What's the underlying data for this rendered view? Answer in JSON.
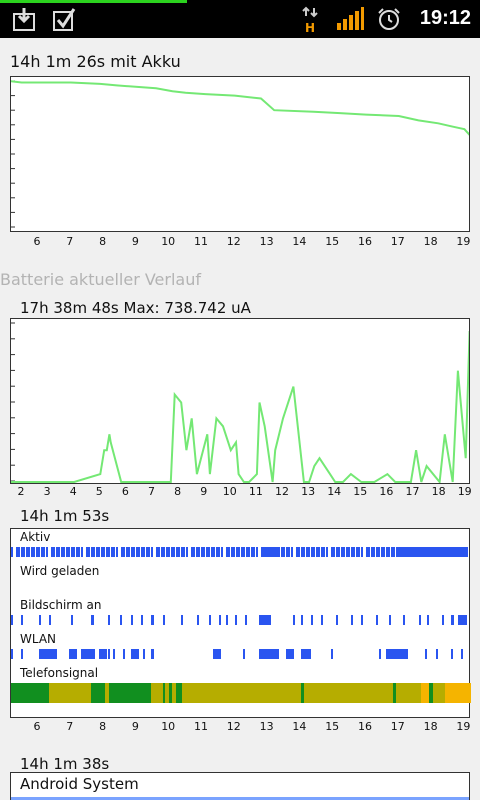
{
  "status_bar": {
    "time": "19:12",
    "icons": [
      "download-icon",
      "checkbox-notification-icon",
      "hsdpa-data-icon",
      "signal-bars-icon",
      "alarm-clock-icon"
    ]
  },
  "battery_graph": {
    "title": "14h 1m 26s mit Akku",
    "ticks": [
      "6",
      "7",
      "8",
      "9",
      "10",
      "11",
      "12",
      "13",
      "14",
      "15",
      "16",
      "17",
      "18",
      "19"
    ],
    "color": "#74e874"
  },
  "history_section": {
    "title": "Batterie aktueller Verlauf"
  },
  "current_graph": {
    "title": "17h 38m 48s Max: 738.742 uA",
    "ticks": [
      "2",
      "3",
      "4",
      "5",
      "6",
      "7",
      "8",
      "9",
      "10",
      "11",
      "12",
      "13",
      "14",
      "15",
      "16",
      "17",
      "18",
      "19"
    ],
    "color": "#74e874"
  },
  "signals_graph": {
    "title": "14h 1m 53s",
    "rows": [
      {
        "label": "Aktiv",
        "color": "#2a55f0"
      },
      {
        "label": "Wird geladen",
        "color": "#2a55f0"
      },
      {
        "label": "Bildschirm an",
        "color": "#2a55f0"
      },
      {
        "label": "WLAN",
        "color": "#2a55f0"
      },
      {
        "label": "Telefonsignal",
        "colors": [
          "#b6ad00",
          "#118f1f",
          "#f5b400"
        ]
      }
    ],
    "ticks": [
      "6",
      "7",
      "8",
      "9",
      "10",
      "11",
      "12",
      "13",
      "14",
      "15",
      "16",
      "17",
      "18",
      "19"
    ]
  },
  "app_usage": {
    "title": "14h 1m 38s",
    "items": [
      {
        "name": "Android System"
      }
    ]
  },
  "chart_data": [
    {
      "type": "line",
      "title": "14h 1m 26s mit Akku",
      "x": [
        5.1,
        5.5,
        7.0,
        7.9,
        8.4,
        9.6,
        10.1,
        10.5,
        11.1,
        12.0,
        12.8,
        13.2,
        14.4,
        15.2,
        16.0,
        17.0,
        17.6,
        18.2,
        18.6,
        19.0,
        19.2
      ],
      "y": [
        100,
        99,
        99,
        98,
        97,
        95,
        93,
        92,
        91,
        90,
        88,
        80,
        79,
        78,
        77,
        76,
        73,
        71,
        69,
        67,
        62
      ],
      "ylim": [
        0,
        100
      ],
      "x_ticks": [
        "6",
        "7",
        "8",
        "9",
        "10",
        "11",
        "12",
        "13",
        "14",
        "15",
        "16",
        "17",
        "18",
        "19"
      ]
    },
    {
      "type": "line",
      "title": "17h 38m 48s Max: 738.742 uA",
      "x": [
        1.5,
        4.0,
        5.0,
        5.15,
        5.25,
        5.35,
        5.4,
        5.8,
        6.2,
        7.7,
        7.85,
        8.1,
        8.3,
        8.5,
        8.7,
        9.1,
        9.2,
        9.45,
        9.7,
        10.0,
        10.2,
        10.3,
        10.5,
        10.7,
        11.0,
        11.1,
        11.3,
        11.6,
        11.7,
        12.0,
        12.4,
        12.8,
        13.0,
        13.2,
        13.4,
        13.8,
        14.0,
        14.3,
        14.6,
        15.0,
        15.5,
        16.0,
        16.3,
        16.9,
        17.1,
        17.3,
        17.5,
        18.0,
        18.2,
        18.5,
        18.7,
        19.0,
        19.15
      ],
      "y": [
        0,
        0,
        5,
        20,
        20,
        30,
        25,
        0,
        0,
        0,
        55,
        50,
        20,
        40,
        5,
        30,
        5,
        40,
        35,
        20,
        25,
        5,
        0,
        0,
        5,
        50,
        35,
        0,
        20,
        40,
        60,
        0,
        0,
        10,
        15,
        5,
        0,
        0,
        5,
        0,
        0,
        5,
        0,
        0,
        20,
        0,
        10,
        0,
        30,
        0,
        70,
        15,
        95
      ],
      "ylim": [
        0,
        100
      ],
      "x_ticks": [
        "2",
        "3",
        "4",
        "5",
        "6",
        "7",
        "8",
        "9",
        "10",
        "11",
        "12",
        "13",
        "14",
        "15",
        "16",
        "17",
        "18",
        "19"
      ]
    }
  ]
}
